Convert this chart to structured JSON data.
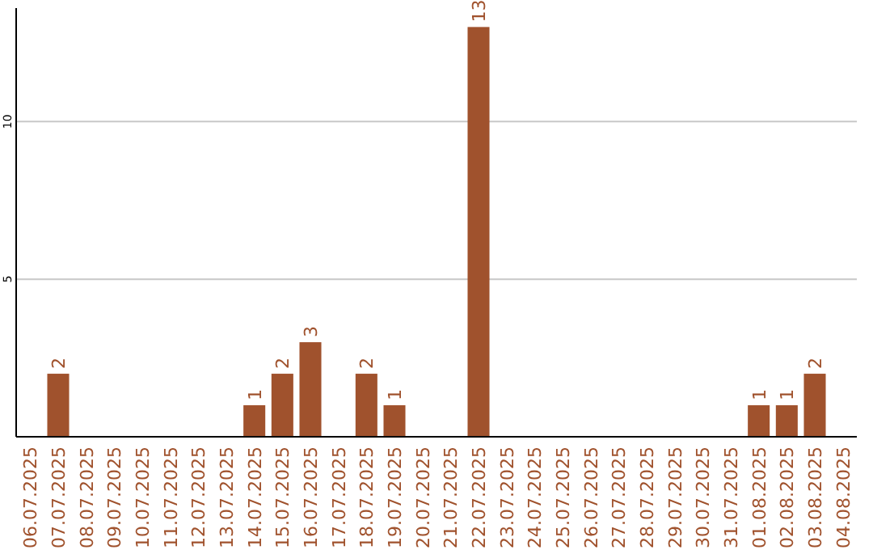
{
  "chart_data": {
    "type": "bar",
    "categories": [
      "06.07.2025",
      "07.07.2025",
      "08.07.2025",
      "09.07.2025",
      "10.07.2025",
      "11.07.2025",
      "12.07.2025",
      "13.07.2025",
      "14.07.2025",
      "15.07.2025",
      "16.07.2025",
      "17.07.2025",
      "18.07.2025",
      "19.07.2025",
      "20.07.2025",
      "21.07.2025",
      "22.07.2025",
      "23.07.2025",
      "24.07.2025",
      "25.07.2025",
      "26.07.2025",
      "27.07.2025",
      "28.07.2025",
      "29.07.2025",
      "30.07.2025",
      "31.07.2025",
      "01.08.2025",
      "02.08.2025",
      "03.08.2025",
      "04.08.2025"
    ],
    "values": [
      0,
      2,
      0,
      0,
      0,
      0,
      0,
      0,
      1,
      2,
      3,
      0,
      2,
      1,
      0,
      0,
      13,
      0,
      0,
      0,
      0,
      0,
      0,
      0,
      0,
      0,
      1,
      1,
      2,
      0
    ],
    "value_labels": [
      null,
      "2",
      null,
      null,
      null,
      null,
      null,
      null,
      "1",
      "2",
      "3",
      null,
      "2",
      "1",
      null,
      null,
      "13",
      null,
      null,
      null,
      null,
      null,
      null,
      null,
      null,
      null,
      "1",
      "1",
      "2",
      null
    ],
    "color": "#a0522d",
    "ylim": [
      0,
      13.6
    ],
    "yticks": [
      5,
      10
    ],
    "grid": "y"
  }
}
